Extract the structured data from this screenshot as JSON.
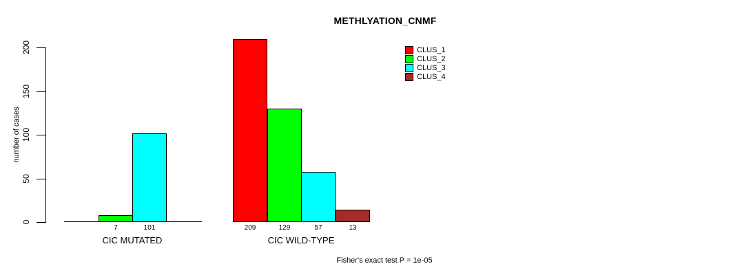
{
  "colors": {
    "background": "#ffffff",
    "axis": "#000000",
    "text": "#000000",
    "bar_border": "#000000",
    "clus_1": "#ff0000",
    "clus_2": "#00ff00",
    "clus_3": "#00ffff",
    "clus_4": "#a52a2a"
  },
  "chart_data": {
    "type": "bar",
    "title": "METHLYATION_CNMF",
    "ylabel": "number of cases",
    "xlabel": "",
    "ylim": [
      0,
      200
    ],
    "yticks": [
      0,
      50,
      100,
      150,
      200
    ],
    "grid": false,
    "annotation": "Fisher's exact test P = 1e-05",
    "legend": {
      "position": "top-right",
      "entries": [
        {
          "label": "CLUS_1",
          "color": "#ff0000"
        },
        {
          "label": "CLUS_2",
          "color": "#00ff00"
        },
        {
          "label": "CLUS_3",
          "color": "#00ffff"
        },
        {
          "label": "CLUS_4",
          "color": "#a52a2a"
        }
      ]
    },
    "groups": [
      {
        "label": "CIC MUTATED",
        "bars": [
          {
            "series": "CLUS_1",
            "value": 0,
            "value_label": "",
            "color": "#ff0000"
          },
          {
            "series": "CLUS_2",
            "value": 7,
            "value_label": "7",
            "color": "#00ff00"
          },
          {
            "series": "CLUS_3",
            "value": 101,
            "value_label": "101",
            "color": "#00ffff"
          },
          {
            "series": "CLUS_4",
            "value": 0,
            "value_label": "",
            "color": "#a52a2a"
          }
        ]
      },
      {
        "label": "CIC WILD-TYPE",
        "bars": [
          {
            "series": "CLUS_1",
            "value": 209,
            "value_label": "209",
            "color": "#ff0000"
          },
          {
            "series": "CLUS_2",
            "value": 129,
            "value_label": "129",
            "color": "#00ff00"
          },
          {
            "series": "CLUS_3",
            "value": 57,
            "value_label": "57",
            "color": "#00ffff"
          },
          {
            "series": "CLUS_4",
            "value": 13,
            "value_label": "13",
            "color": "#a52a2a"
          }
        ]
      }
    ]
  }
}
